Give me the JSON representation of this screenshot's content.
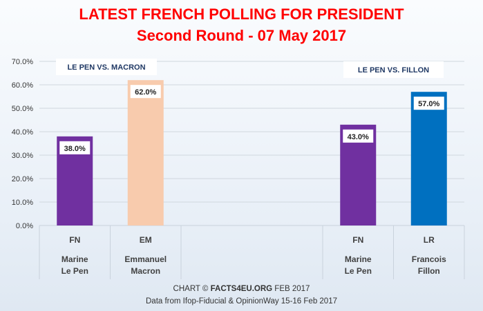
{
  "header": {
    "title": "LATEST FRENCH POLLING FOR PRESIDENT",
    "subtitle": "Second Round - 07 May 2017"
  },
  "footer": {
    "credit_prefix": "CHART ©",
    "credit_site": "FACTS4EU.ORG",
    "credit_date": "FEB 2017",
    "source": "Data from Ifop-Fiducial & OpinionWay 15-16 Feb 2017"
  },
  "chart_data": {
    "type": "bar",
    "ylim": [
      0,
      70
    ],
    "y_ticks": [
      "0.0%",
      "10.0%",
      "20.0%",
      "30.0%",
      "40.0%",
      "50.0%",
      "60.0%",
      "70.0%"
    ],
    "grid": true,
    "groups": [
      {
        "label": "LE PEN VS. MACRON",
        "bars": [
          {
            "party": "FN",
            "name_line1": "Marine",
            "name_line2": "Le Pen",
            "value": 38.0,
            "label": "38.0%",
            "color": "#7030a0"
          },
          {
            "party": "EM",
            "name_line1": "Emmanuel",
            "name_line2": "Macron",
            "value": 62.0,
            "label": "62.0%",
            "color": "#f8cbad"
          }
        ]
      },
      {
        "label": "LE PEN VS. FILLON",
        "bars": [
          {
            "party": "FN",
            "name_line1": "Marine",
            "name_line2": "Le Pen",
            "value": 43.0,
            "label": "43.0%",
            "color": "#7030a0"
          },
          {
            "party": "LR",
            "name_line1": "Francois",
            "name_line2": "Fillon",
            "value": 57.0,
            "label": "57.0%",
            "color": "#0070c0"
          }
        ]
      }
    ]
  }
}
